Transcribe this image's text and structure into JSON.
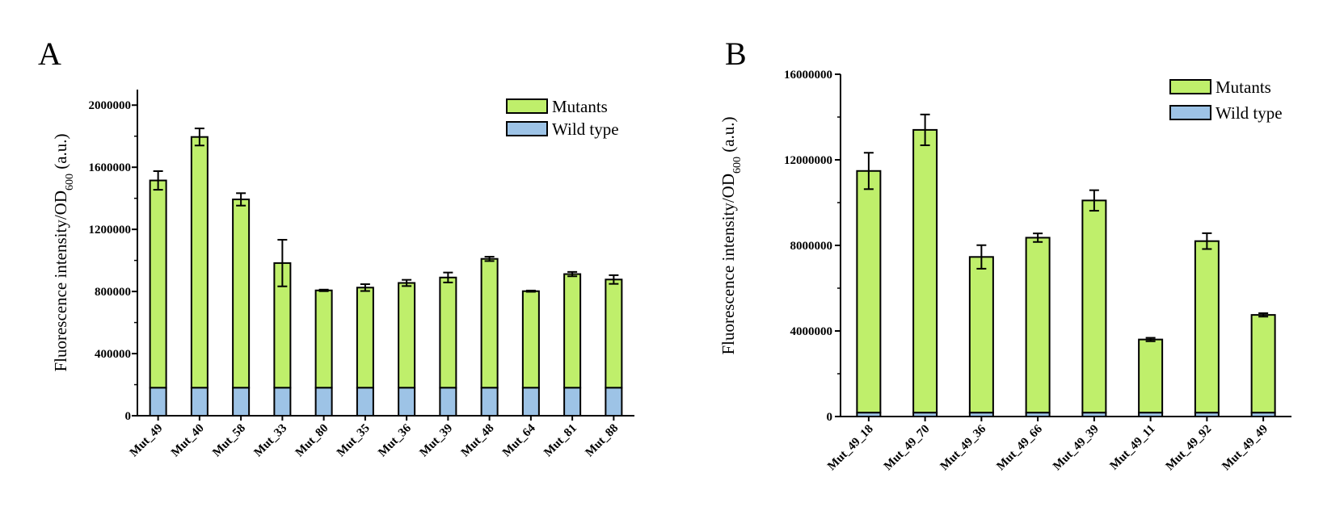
{
  "chart_data": [
    {
      "type": "bar",
      "panel_label": "A",
      "stacked": true,
      "categories": [
        "Mut_49",
        "Mut_40",
        "Mut_58",
        "Mut_33",
        "Mut_80",
        "Mut_35",
        "Mut_36",
        "Mut_39",
        "Mut_48",
        "Mut_64",
        "Mut_81",
        "Mut_88"
      ],
      "series": [
        {
          "name": "Wild type",
          "color": "#9dc3e6",
          "values": [
            180000,
            180000,
            180000,
            180000,
            180000,
            180000,
            180000,
            180000,
            180000,
            180000,
            180000,
            180000
          ]
        },
        {
          "name": "Mutants",
          "color": "#bfef6b",
          "values": [
            1335000,
            1615000,
            1213000,
            803000,
            627000,
            645000,
            675000,
            710000,
            830000,
            622000,
            732000,
            697000
          ]
        }
      ],
      "totals": [
        1515000,
        1795000,
        1393000,
        983000,
        807000,
        825000,
        855000,
        890000,
        1010000,
        802000,
        912000,
        877000
      ],
      "error": [
        60000,
        55000,
        40000,
        150000,
        5000,
        22000,
        20000,
        32000,
        14000,
        4000,
        14000,
        28000
      ],
      "ylabel": "Fluorescence intensity/OD",
      "ylabel_sub": "600",
      "ylabel_suffix": " (a.u.)",
      "ylim": [
        0,
        2100000
      ],
      "yticks": [
        0,
        400000,
        800000,
        1200000,
        1600000,
        2000000
      ],
      "ytick_labels": [
        "0",
        "400000",
        "800000",
        "1200000",
        "1600000",
        "2000000"
      ],
      "legend": [
        "Mutants",
        "Wild type"
      ],
      "legend_position": "top-right",
      "grid": false
    },
    {
      "type": "bar",
      "panel_label": "B",
      "stacked": true,
      "categories": [
        "Mut_49_18",
        "Mut_49_70",
        "Mut_49_36",
        "Mut_49_66",
        "Mut_49_39",
        "Mut_49_11",
        "Mut_49_92",
        "Mut_49_49"
      ],
      "series": [
        {
          "name": "Wild type",
          "color": "#9dc3e6",
          "values": [
            180000,
            180000,
            180000,
            180000,
            180000,
            180000,
            180000,
            180000
          ]
        },
        {
          "name": "Mutants",
          "color": "#bfef6b",
          "values": [
            11300000,
            13220000,
            7280000,
            8180000,
            9920000,
            3420000,
            8020000,
            4570000
          ]
        }
      ],
      "totals": [
        11480000,
        13400000,
        7460000,
        8360000,
        10100000,
        3600000,
        8200000,
        4750000
      ],
      "error": [
        850000,
        720000,
        550000,
        200000,
        480000,
        80000,
        370000,
        80000
      ],
      "ylabel": "Fluorescence intensity/OD",
      "ylabel_sub": "600",
      "ylabel_suffix": " (a.u.)",
      "ylim": [
        0,
        16000000
      ],
      "yticks": [
        0,
        4000000,
        8000000,
        12000000,
        16000000
      ],
      "ytick_labels": [
        "0",
        "4000000",
        "8000000",
        "12000000",
        "16000000"
      ],
      "legend": [
        "Mutants",
        "Wild type"
      ],
      "legend_position": "top-right",
      "grid": false
    }
  ]
}
